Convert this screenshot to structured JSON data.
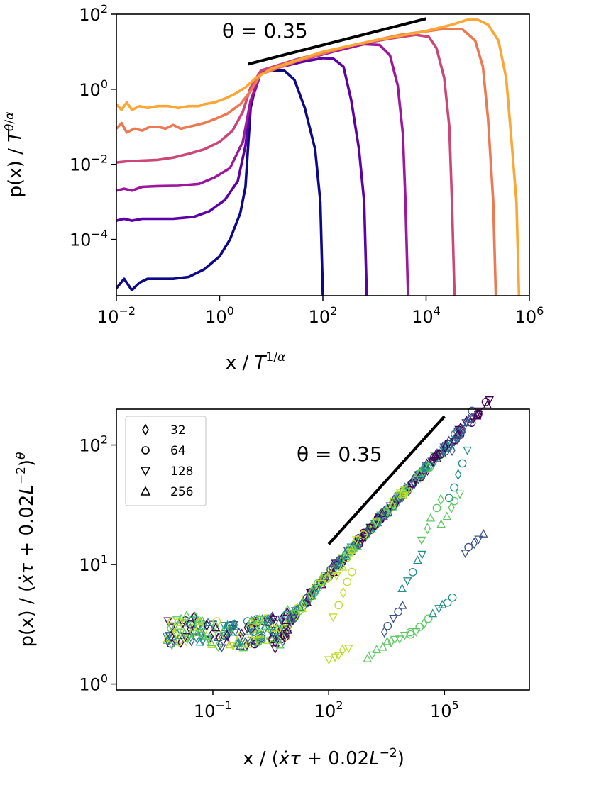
{
  "chart_data": [
    {
      "type": "line",
      "scale": "loglog",
      "xlabel": "x / T^{1/α}",
      "ylabel": "p(x) / T^{θ/α}",
      "xlim_exp": [
        -2,
        6
      ],
      "ylim_exp": [
        -5.5,
        2
      ],
      "xticks": [
        {
          "base": "10",
          "exp": "−2"
        },
        {
          "base": "10",
          "exp": "0"
        },
        {
          "base": "10",
          "exp": "2"
        },
        {
          "base": "10",
          "exp": "4"
        },
        {
          "base": "10",
          "exp": "6"
        }
      ],
      "yticks": [
        {
          "base": "10",
          "exp": "2"
        },
        {
          "base": "10",
          "exp": "0"
        },
        {
          "base": "10",
          "exp": "−2"
        },
        {
          "base": "10",
          "exp": "−4"
        }
      ],
      "annotation": {
        "text": "θ = 0.35",
        "line_log10": [
          [
            0.55,
            0.67
          ],
          [
            4.0,
            1.88
          ]
        ]
      },
      "series": [
        {
          "color": "#0d0887",
          "points_log10": [
            [
              -2,
              -5.3
            ],
            [
              -1.85,
              -5.05
            ],
            [
              -1.7,
              -5.35
            ],
            [
              -1.55,
              -5.15
            ],
            [
              -1.4,
              -5.05
            ],
            [
              -1.2,
              -5.05
            ],
            [
              -0.9,
              -5.05
            ],
            [
              -0.6,
              -5.0
            ],
            [
              -0.3,
              -4.8
            ],
            [
              0,
              -4.45
            ],
            [
              0.2,
              -4.0
            ],
            [
              0.4,
              -3.3
            ],
            [
              0.5,
              -2.6
            ],
            [
              0.6,
              -0.5
            ],
            [
              0.75,
              0.4
            ],
            [
              1.0,
              0.5
            ],
            [
              1.25,
              0.5
            ],
            [
              1.45,
              0.25
            ],
            [
              1.65,
              -0.5
            ],
            [
              1.85,
              -1.6
            ],
            [
              1.95,
              -3.0
            ],
            [
              2.0,
              -5.5
            ]
          ]
        },
        {
          "color": "#5c01a6",
          "points_log10": [
            [
              -2,
              -3.5
            ],
            [
              -1.85,
              -3.45
            ],
            [
              -1.7,
              -3.5
            ],
            [
              -1.5,
              -3.45
            ],
            [
              -1.2,
              -3.45
            ],
            [
              -0.9,
              -3.45
            ],
            [
              -0.5,
              -3.4
            ],
            [
              -0.2,
              -3.25
            ],
            [
              0.1,
              -2.95
            ],
            [
              0.35,
              -2.45
            ],
            [
              0.5,
              -1.5
            ],
            [
              0.6,
              -0.4
            ],
            [
              0.8,
              0.45
            ],
            [
              1.2,
              0.6
            ],
            [
              1.6,
              0.73
            ],
            [
              2.0,
              0.83
            ],
            [
              2.2,
              0.82
            ],
            [
              2.4,
              0.6
            ],
            [
              2.55,
              -0.3
            ],
            [
              2.7,
              -1.6
            ],
            [
              2.8,
              -3.0
            ],
            [
              2.85,
              -5.5
            ]
          ]
        },
        {
          "color": "#9c179e",
          "points_log10": [
            [
              -2,
              -2.7
            ],
            [
              -1.85,
              -2.65
            ],
            [
              -1.7,
              -2.7
            ],
            [
              -1.5,
              -2.6
            ],
            [
              -1.2,
              -2.58
            ],
            [
              -0.8,
              -2.57
            ],
            [
              -0.4,
              -2.52
            ],
            [
              -0.1,
              -2.35
            ],
            [
              0.2,
              -2.1
            ],
            [
              0.45,
              -1.4
            ],
            [
              0.6,
              -0.3
            ],
            [
              0.8,
              0.45
            ],
            [
              1.5,
              0.75
            ],
            [
              2.2,
              1.0
            ],
            [
              2.8,
              1.2
            ],
            [
              3.1,
              1.18
            ],
            [
              3.3,
              0.9
            ],
            [
              3.45,
              0.1
            ],
            [
              3.55,
              -1.2
            ],
            [
              3.6,
              -3.0
            ],
            [
              3.65,
              -5.5
            ]
          ]
        },
        {
          "color": "#cc4778",
          "points_log10": [
            [
              -2,
              -1.95
            ],
            [
              -1.8,
              -1.92
            ],
            [
              -1.5,
              -1.9
            ],
            [
              -1.2,
              -1.88
            ],
            [
              -0.9,
              -1.82
            ],
            [
              -0.6,
              -1.72
            ],
            [
              -0.3,
              -1.6
            ],
            [
              0,
              -1.4
            ],
            [
              0.25,
              -1.1
            ],
            [
              0.45,
              -0.6
            ],
            [
              0.6,
              0.05
            ],
            [
              0.8,
              0.5
            ],
            [
              1.5,
              0.8
            ],
            [
              2.5,
              1.15
            ],
            [
              3.3,
              1.35
            ],
            [
              3.8,
              1.45
            ],
            [
              4.05,
              1.4
            ],
            [
              4.2,
              1.1
            ],
            [
              4.35,
              0.3
            ],
            [
              4.45,
              -1.0
            ],
            [
              4.5,
              -3.0
            ],
            [
              4.55,
              -5.5
            ]
          ]
        },
        {
          "color": "#ed7953",
          "points_log10": [
            [
              -2,
              -1.05
            ],
            [
              -1.9,
              -0.9
            ],
            [
              -1.8,
              -1.15
            ],
            [
              -1.65,
              -1.05
            ],
            [
              -1.5,
              -1.1
            ],
            [
              -1.35,
              -1.0
            ],
            [
              -1.2,
              -1.0
            ],
            [
              -1.05,
              -1.05
            ],
            [
              -0.9,
              -0.95
            ],
            [
              -0.75,
              -1.05
            ],
            [
              -0.6,
              -1.0
            ],
            [
              -0.45,
              -0.95
            ],
            [
              -0.3,
              -0.9
            ],
            [
              -0.1,
              -0.8
            ],
            [
              0.15,
              -0.65
            ],
            [
              0.4,
              -0.4
            ],
            [
              0.6,
              -0.05
            ],
            [
              0.8,
              0.4
            ],
            [
              1.5,
              0.75
            ],
            [
              2.5,
              1.15
            ],
            [
              3.5,
              1.45
            ],
            [
              4.3,
              1.6
            ],
            [
              4.7,
              1.6
            ],
            [
              4.95,
              1.3
            ],
            [
              5.1,
              0.6
            ],
            [
              5.2,
              -0.8
            ],
            [
              5.3,
              -3.0
            ],
            [
              5.35,
              -5.5
            ]
          ]
        },
        {
          "color": "#fca636",
          "points_log10": [
            [
              -2,
              -0.4
            ],
            [
              -1.9,
              -0.55
            ],
            [
              -1.8,
              -0.35
            ],
            [
              -1.7,
              -0.55
            ],
            [
              -1.55,
              -0.45
            ],
            [
              -1.4,
              -0.5
            ],
            [
              -1.2,
              -0.45
            ],
            [
              -1.0,
              -0.45
            ],
            [
              -0.8,
              -0.5
            ],
            [
              -0.6,
              -0.45
            ],
            [
              -0.4,
              -0.45
            ],
            [
              -0.3,
              -0.4
            ],
            [
              -0.1,
              -0.35
            ],
            [
              0.1,
              -0.25
            ],
            [
              0.3,
              -0.12
            ],
            [
              0.5,
              0.05
            ],
            [
              0.7,
              0.3
            ],
            [
              1.0,
              0.55
            ],
            [
              2.0,
              1.0
            ],
            [
              3.0,
              1.3
            ],
            [
              4.0,
              1.55
            ],
            [
              4.5,
              1.72
            ],
            [
              4.8,
              1.85
            ],
            [
              5.0,
              1.85
            ],
            [
              5.2,
              1.72
            ],
            [
              5.4,
              1.3
            ],
            [
              5.55,
              0.3
            ],
            [
              5.65,
              -1.3
            ],
            [
              5.75,
              -3.0
            ],
            [
              5.8,
              -5.5
            ]
          ]
        }
      ]
    },
    {
      "type": "scatter",
      "scale": "loglog",
      "xlabel": "x / (ẋτ + 0.02L^{−2})",
      "ylabel": "p(x) / (ẋτ + 0.02L^{−2})^θ",
      "xlim_exp": [
        -3.5,
        7.2
      ],
      "ylim_exp": [
        -0.05,
        2.3
      ],
      "xticks": [
        {
          "base": "10",
          "exp": "−1"
        },
        {
          "base": "10",
          "exp": "2"
        },
        {
          "base": "10",
          "exp": "5"
        }
      ],
      "yticks": [
        {
          "base": "10",
          "exp": "2"
        },
        {
          "base": "10",
          "exp": "1"
        },
        {
          "base": "10",
          "exp": "0"
        }
      ],
      "annotation": {
        "text": "θ = 0.35",
        "line_log10": [
          [
            2.0,
            1.17
          ],
          [
            5.0,
            2.24
          ]
        ]
      },
      "legend": {
        "position": "top-left",
        "entries": [
          {
            "marker": "diamond",
            "label": "32"
          },
          {
            "marker": "circle",
            "label": "64"
          },
          {
            "marker": "triangle-down",
            "label": "128"
          },
          {
            "marker": "triangle-up",
            "label": "256"
          }
        ]
      },
      "colormap": [
        "#440154",
        "#3b528b",
        "#21908d",
        "#5dc963",
        "#bddf26"
      ]
    }
  ]
}
